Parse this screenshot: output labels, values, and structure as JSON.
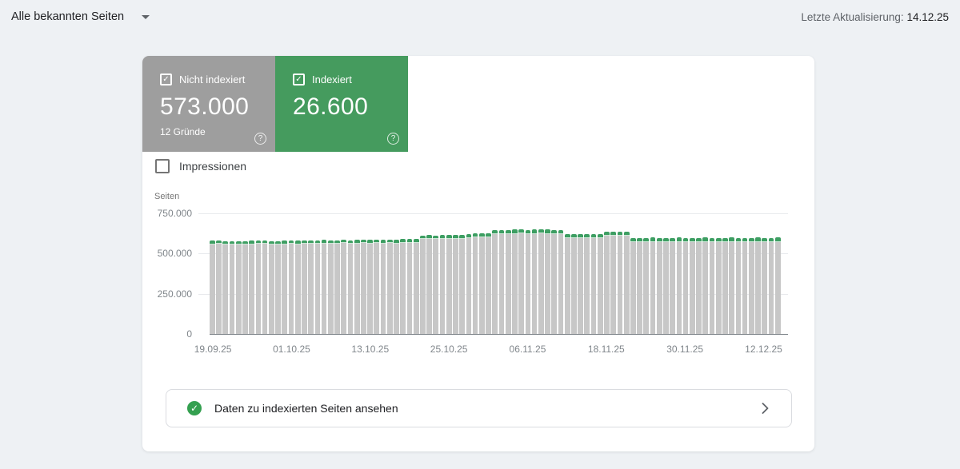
{
  "topbar": {
    "scope_label": "Alle bekannten Seiten",
    "last_update_label": "Letzte Aktualisierung:",
    "last_update_date": "14.12.25"
  },
  "metrics": {
    "not_indexed": {
      "label": "Nicht indexiert",
      "value": "573.000",
      "sub": "12 Gründe",
      "checked": true,
      "color": "#9e9e9e"
    },
    "indexed": {
      "label": "Indexiert",
      "value": "26.600",
      "checked": true,
      "color": "#459b5e"
    }
  },
  "impressions": {
    "label": "Impressionen",
    "checked": false
  },
  "cta": {
    "label": "Daten zu indexierten Seiten ansehen"
  },
  "icons": {
    "check_glyph": "✓",
    "help_glyph": "?"
  },
  "chart_data": {
    "type": "bar",
    "stacked": true,
    "y_axis_title": "Seiten",
    "ylim": [
      0,
      750000
    ],
    "grid": true,
    "y_ticks": [
      {
        "label": "750.000",
        "value": 750000
      },
      {
        "label": "500.000",
        "value": 500000
      },
      {
        "label": "250.000",
        "value": 250000
      },
      {
        "label": "0",
        "value": 0
      }
    ],
    "x_ticks": [
      {
        "label": "19.09.25",
        "index": 0
      },
      {
        "label": "01.10.25",
        "index": 12
      },
      {
        "label": "13.10.25",
        "index": 24
      },
      {
        "label": "25.10.25",
        "index": 36
      },
      {
        "label": "06.11.25",
        "index": 48
      },
      {
        "label": "18.11.25",
        "index": 60
      },
      {
        "label": "30.11.25",
        "index": 72
      },
      {
        "label": "12.12.25",
        "index": 84
      }
    ],
    "series": [
      {
        "name": "Nicht indexiert",
        "color": "#c7c7c7",
        "values": [
          558000,
          560000,
          556000,
          557000,
          558000,
          556000,
          559000,
          561000,
          562000,
          558000,
          557000,
          559000,
          560000,
          558000,
          561000,
          562000,
          560000,
          563000,
          561000,
          562000,
          564000,
          562000,
          563000,
          565000,
          563000,
          564000,
          562000,
          565000,
          563000,
          566000,
          567000,
          568000,
          590000,
          591000,
          590000,
          592000,
          591000,
          593000,
          592000,
          598000,
          599000,
          600000,
          601000,
          620000,
          622000,
          621000,
          623000,
          624000,
          622000,
          623000,
          624000,
          623000,
          622000,
          621000,
          597000,
          596000,
          598000,
          597000,
          596000,
          598000,
          609000,
          610000,
          611000,
          610000,
          572000,
          571000,
          572000,
          573000,
          572000,
          571000,
          572000,
          573000,
          572000,
          571000,
          572000,
          573000,
          572000,
          571000,
          572000,
          573000,
          572000,
          571000,
          572000,
          573000,
          572000,
          572000,
          573000
        ]
      },
      {
        "name": "Indexiert",
        "color": "#3d9e62",
        "values": [
          22000,
          21000,
          22000,
          22000,
          21000,
          22000,
          22000,
          23000,
          22000,
          21000,
          22000,
          22000,
          22000,
          22000,
          23000,
          22000,
          22000,
          23000,
          22000,
          22000,
          23000,
          22000,
          23000,
          22000,
          23000,
          22000,
          23000,
          22000,
          23000,
          23000,
          24000,
          24000,
          23000,
          24000,
          23000,
          24000,
          23000,
          24000,
          24000,
          24000,
          25000,
          24000,
          25000,
          26000,
          26000,
          25000,
          26000,
          26000,
          25000,
          26000,
          26000,
          26000,
          25000,
          26000,
          25000,
          25000,
          24000,
          25000,
          25000,
          25000,
          26000,
          25000,
          26000,
          26000,
          26000,
          26000,
          26000,
          26000,
          26000,
          26000,
          26000,
          26000,
          26000,
          26000,
          26000,
          26000,
          26000,
          26000,
          26000,
          26000,
          26000,
          26000,
          26000,
          26000,
          26000,
          26000,
          26600
        ]
      }
    ]
  }
}
